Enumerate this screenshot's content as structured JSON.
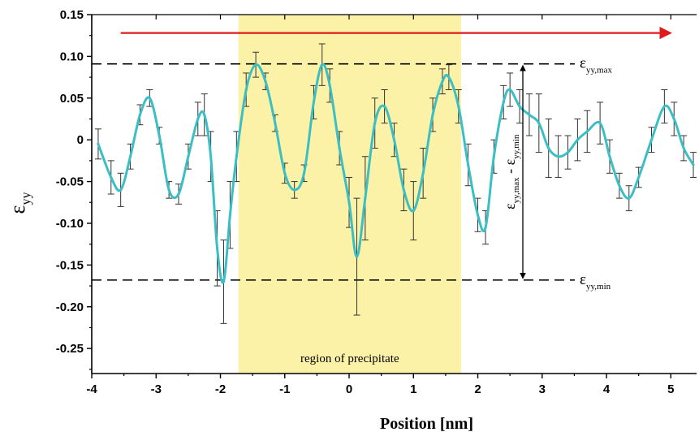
{
  "chart_data": {
    "type": "line",
    "xlabel": "Position [nm]",
    "ylabel": {
      "main": "ε",
      "sub": "yy"
    },
    "xlim": [
      -4,
      5.4
    ],
    "ylim": [
      -0.28,
      0.15
    ],
    "xticks": [
      -4,
      -3,
      -2,
      -1,
      0,
      1,
      2,
      3,
      4,
      5
    ],
    "xtick_labels": [
      "-4",
      "-3",
      "-2",
      "-1",
      "0",
      "1",
      "2",
      "3",
      "4",
      "5"
    ],
    "yticks": [
      0.15,
      0.1,
      0.05,
      0,
      -0.05,
      -0.1,
      -0.15,
      -0.2,
      -0.25
    ],
    "ytick_labels": [
      "0.15",
      "0.10",
      "0.05",
      "0",
      "-0.05",
      "-0.10",
      "-0.15",
      "-0.20",
      "-0.25"
    ],
    "grid": false,
    "colors": {
      "line": "#3bbfc4",
      "errorbar": "#333333",
      "region": "#fbf2a8",
      "arrow": "#e01b1b"
    },
    "region": {
      "x0": -1.72,
      "x1": 1.74,
      "label": "region of precipitate"
    },
    "ref_lines": [
      {
        "y": 0.091,
        "label_main": "ε",
        "label_sub": "yy,max"
      },
      {
        "y": -0.168,
        "label_main": "ε",
        "label_sub": "yy,min"
      }
    ],
    "range_annotation": {
      "x": 2.7,
      "y0": 0.091,
      "y1": -0.168,
      "label_a_main": "ε",
      "label_a_sub": "yy,max",
      "label_sep": " - ",
      "label_b_main": "ε",
      "label_b_sub": "yy,min"
    },
    "arrow": {
      "x0": -3.55,
      "x1": 5.0,
      "y": 0.128
    },
    "series": [
      {
        "x": [
          -3.9,
          -3.7,
          -3.55,
          -3.4,
          -3.25,
          -3.1,
          -2.95,
          -2.8,
          -2.65,
          -2.5,
          -2.35,
          -2.25,
          -2.15,
          -2.05,
          -1.95,
          -1.85,
          -1.75,
          -1.6,
          -1.45,
          -1.3,
          -1.15,
          -1.0,
          -0.85,
          -0.7,
          -0.55,
          -0.42,
          -0.3,
          -0.15,
          0.0,
          0.12,
          0.25,
          0.4,
          0.55,
          0.7,
          0.85,
          1.0,
          1.15,
          1.3,
          1.45,
          1.55,
          1.7,
          1.85,
          2.0,
          2.12,
          2.25,
          2.4,
          2.5,
          2.65,
          2.8,
          2.95,
          3.1,
          3.25,
          3.4,
          3.55,
          3.7,
          3.9,
          4.05,
          4.2,
          4.35,
          4.5,
          4.7,
          4.9,
          5.05,
          5.2,
          5.35
        ],
        "y": [
          -0.005,
          -0.045,
          -0.06,
          -0.02,
          0.03,
          0.05,
          0.005,
          -0.06,
          -0.065,
          -0.02,
          0.025,
          0.03,
          -0.02,
          -0.13,
          -0.17,
          -0.09,
          -0.02,
          0.06,
          0.09,
          0.07,
          0.02,
          -0.04,
          -0.06,
          -0.04,
          0.045,
          0.09,
          0.065,
          -0.01,
          -0.075,
          -0.14,
          -0.07,
          0.02,
          0.04,
          0.0,
          -0.06,
          -0.085,
          -0.04,
          0.03,
          0.07,
          0.075,
          0.04,
          -0.03,
          -0.09,
          -0.105,
          -0.02,
          0.045,
          0.06,
          0.04,
          0.03,
          0.02,
          -0.01,
          -0.02,
          -0.015,
          0.0,
          0.01,
          0.02,
          -0.02,
          -0.055,
          -0.07,
          -0.045,
          0.0,
          0.04,
          0.025,
          -0.01,
          -0.03
        ],
        "err": [
          0.018,
          0.02,
          0.02,
          0.015,
          0.012,
          0.01,
          0.01,
          0.01,
          0.012,
          0.015,
          0.02,
          0.025,
          0.03,
          0.045,
          0.05,
          0.04,
          0.03,
          0.02,
          0.015,
          0.01,
          0.01,
          0.012,
          0.01,
          0.01,
          0.02,
          0.025,
          0.02,
          0.02,
          0.03,
          0.07,
          0.05,
          0.03,
          0.02,
          0.02,
          0.025,
          0.035,
          0.03,
          0.02,
          0.015,
          0.015,
          0.02,
          0.025,
          0.02,
          0.02,
          0.02,
          0.02,
          0.02,
          0.02,
          0.025,
          0.035,
          0.035,
          0.025,
          0.02,
          0.025,
          0.025,
          0.025,
          0.02,
          0.015,
          0.015,
          0.012,
          0.015,
          0.02,
          0.02,
          0.015,
          0.015
        ]
      }
    ]
  }
}
